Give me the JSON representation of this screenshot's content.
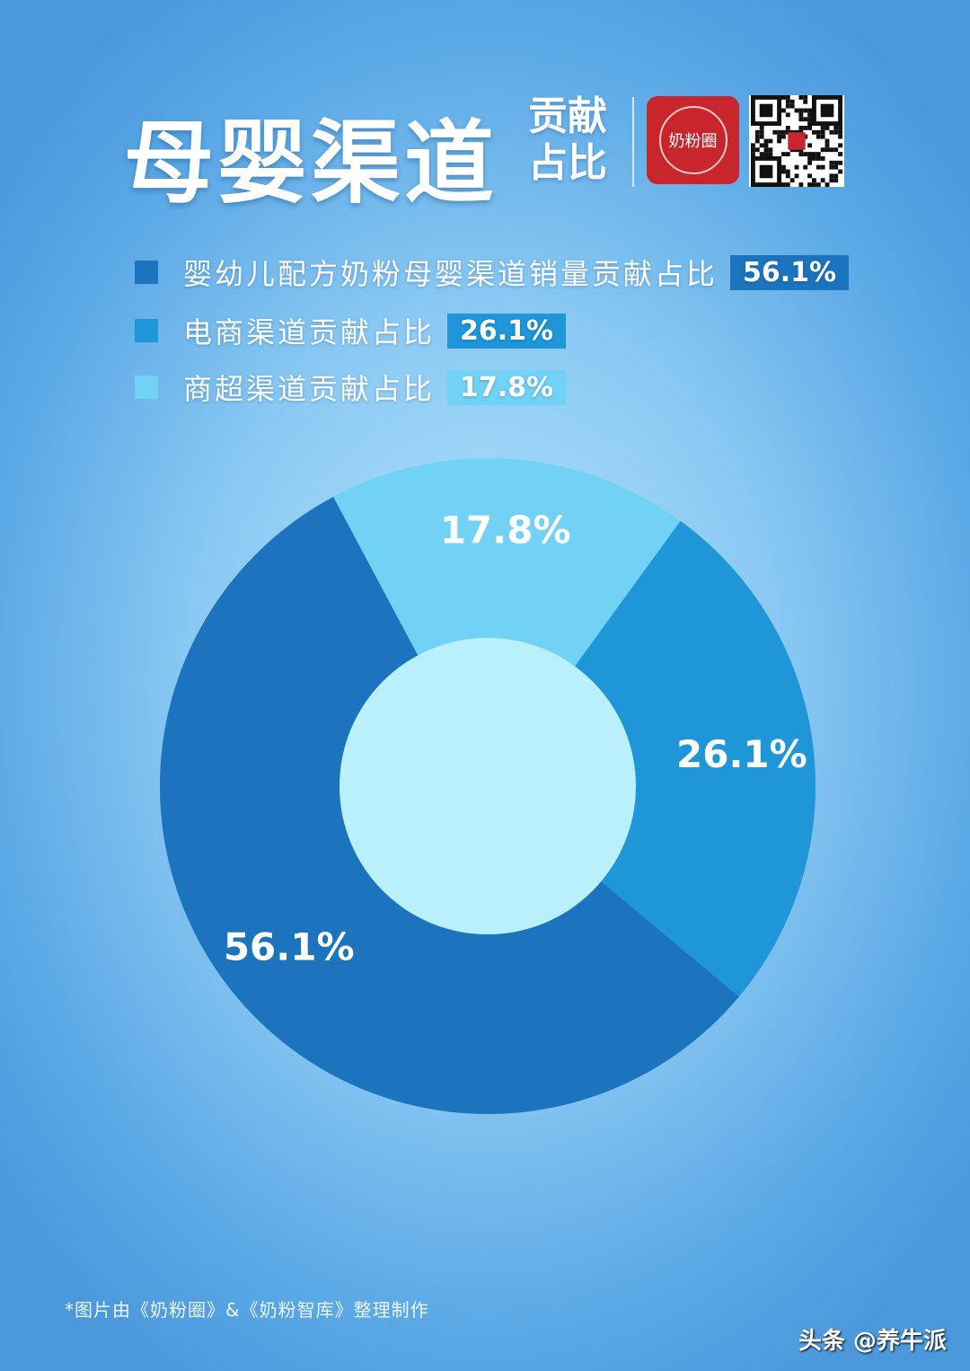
{
  "header": {
    "title": "母婴渠道",
    "subtitle_line1": "贡献",
    "subtitle_line2": "占比",
    "logo_text": "奶粉圈"
  },
  "chart_data": {
    "type": "pie",
    "donut": true,
    "series": [
      {
        "name": "婴幼儿配方奶粉母婴渠道销量贡献占比",
        "value": 56.1,
        "label": "56.1%",
        "color": "#1b74bd"
      },
      {
        "name": "电商渠道贡献占比",
        "value": 26.1,
        "label": "26.1%",
        "color": "#1e96d8"
      },
      {
        "name": "商超渠道贡献占比",
        "value": 17.8,
        "label": "17.8%",
        "color": "#72d2f6"
      }
    ],
    "center_color": "#b9f0fb",
    "legend": "top"
  },
  "footer": {
    "note": "*图片由《奶粉圈》&《奶粉智库》整理制作",
    "watermark": "头条 @养牛派"
  }
}
